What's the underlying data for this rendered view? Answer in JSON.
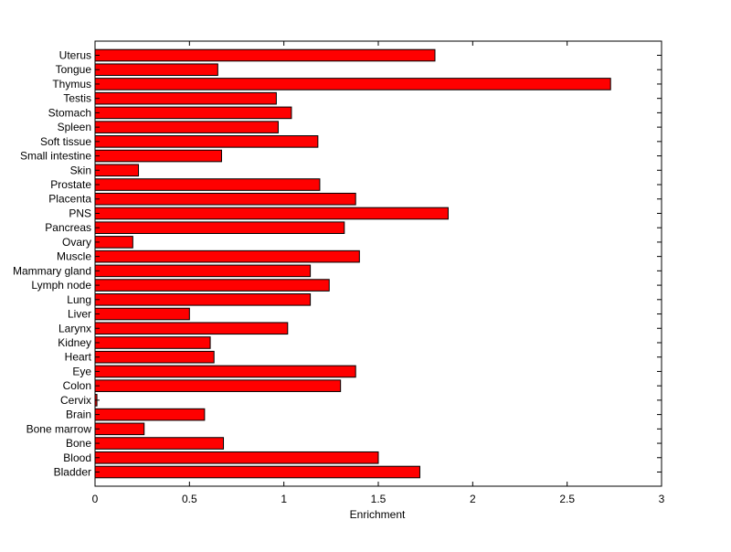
{
  "chart_data": {
    "type": "bar",
    "orientation": "horizontal",
    "title": "",
    "xlabel": "Enrichment",
    "ylabel": "",
    "xlim": [
      0,
      3
    ],
    "xticks": [
      0,
      0.5,
      1,
      1.5,
      2,
      2.5,
      3
    ],
    "xtick_labels": [
      "0",
      "0.5",
      "1",
      "1.5",
      "2",
      "2.5",
      "3"
    ],
    "grid": false,
    "bar_color": "#ff0000",
    "edge_color": "#000000",
    "categories": [
      "Uterus",
      "Tongue",
      "Thymus",
      "Testis",
      "Stomach",
      "Spleen",
      "Soft tissue",
      "Small intestine",
      "Skin",
      "Prostate",
      "Placenta",
      "PNS",
      "Pancreas",
      "Ovary",
      "Muscle",
      "Mammary gland",
      "Lymph node",
      "Lung",
      "Liver",
      "Larynx",
      "Kidney",
      "Heart",
      "Eye",
      "Colon",
      "Cervix",
      "Brain",
      "Bone marrow",
      "Bone",
      "Blood",
      "Bladder"
    ],
    "values": [
      1.8,
      0.65,
      2.73,
      0.96,
      1.04,
      0.97,
      1.18,
      0.67,
      0.23,
      1.19,
      1.38,
      1.87,
      1.32,
      0.2,
      1.4,
      1.14,
      1.24,
      1.14,
      0.5,
      1.02,
      0.61,
      0.63,
      1.38,
      1.3,
      0.01,
      0.58,
      0.26,
      0.68,
      1.5,
      1.72
    ]
  }
}
